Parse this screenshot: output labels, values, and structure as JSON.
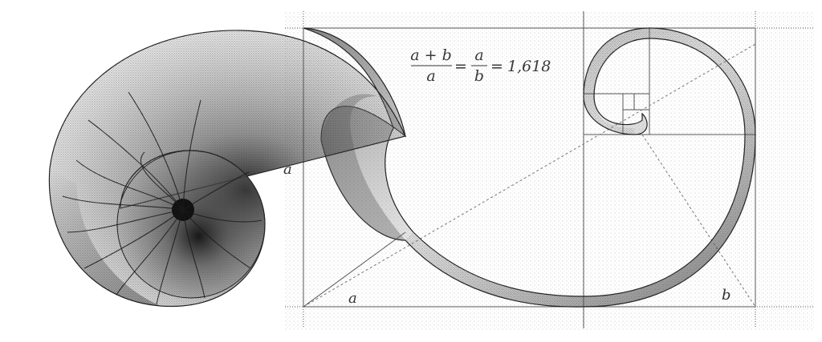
{
  "formula": {
    "numerator": "a + b",
    "denominator": "a",
    "equals_1": "=",
    "frac2_numerator": "a",
    "frac2_denominator": "b",
    "equals_2": "=",
    "value": "1,618"
  },
  "labels": {
    "side_a_vertical": "a",
    "side_a_bottom": "a",
    "side_b_bottom": "b"
  },
  "colors": {
    "ink": "#222222",
    "guide": "#555555",
    "stipple": "#9a9a9a"
  }
}
